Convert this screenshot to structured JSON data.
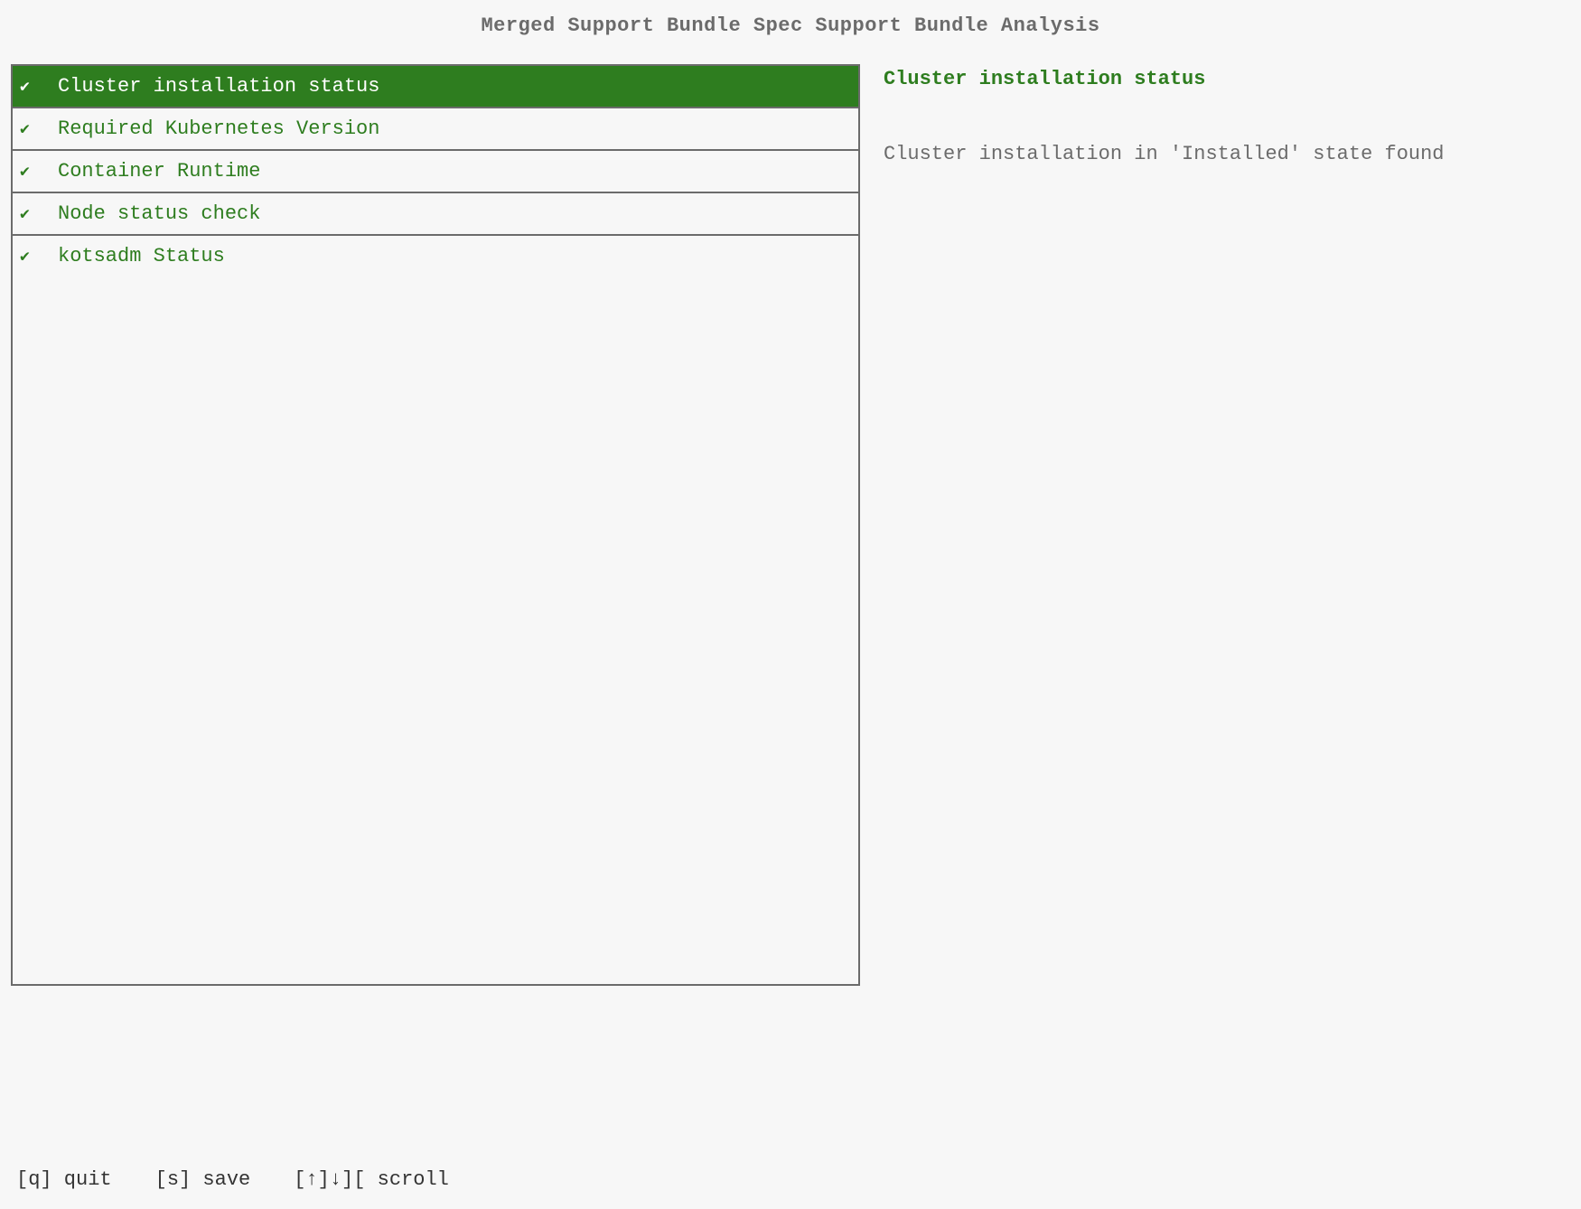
{
  "header": {
    "title": "Merged Support Bundle Spec Support Bundle Analysis"
  },
  "colors": {
    "background": "#f7f7f7",
    "border": "#6b6b6b",
    "text_muted": "#6b6b6b",
    "accent_green": "#2e7d1f",
    "selected_bg": "#2e7d1f",
    "selected_fg": "#ffffff"
  },
  "list": {
    "items": [
      {
        "icon": "✔",
        "label": "Cluster installation status",
        "selected": true
      },
      {
        "icon": "✔",
        "label": "Required Kubernetes Version",
        "selected": false
      },
      {
        "icon": "✔",
        "label": "Container Runtime",
        "selected": false
      },
      {
        "icon": "✔",
        "label": "Node status check",
        "selected": false
      },
      {
        "icon": "✔",
        "label": "kotsadm Status",
        "selected": false
      }
    ]
  },
  "detail": {
    "title": "Cluster installation status",
    "body": "Cluster installation in 'Installed' state found"
  },
  "footer": {
    "hints": [
      "[q] quit",
      "[s] save",
      "[↑]↓][ scroll"
    ]
  }
}
